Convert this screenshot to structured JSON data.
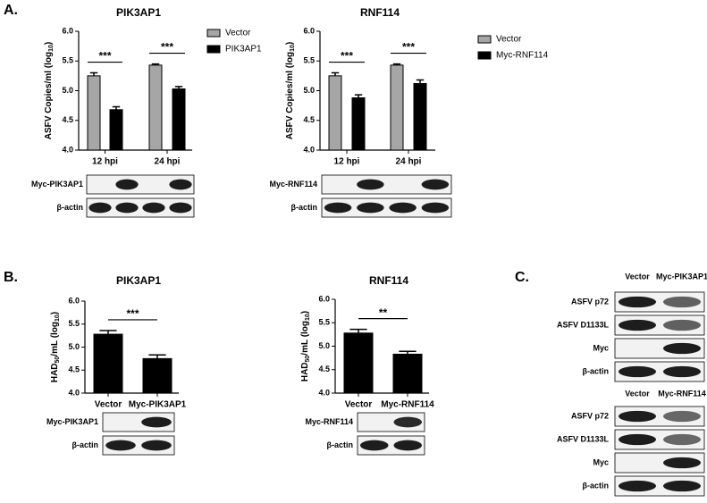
{
  "panel_labels": [
    "A.",
    "B.",
    "C."
  ],
  "chart_data": [
    {
      "type": "bar",
      "title": "PIK3AP1",
      "y_label": [
        "ASFV Copies/ml (log",
        "10",
        ")"
      ],
      "categories": [
        "12 hpi",
        "24 hpi"
      ],
      "series": [
        {
          "name": "Vector",
          "color": "#a6a6a6",
          "values": [
            5.25,
            5.43
          ],
          "errors": [
            0.05,
            0.02
          ]
        },
        {
          "name": "PIK3AP1",
          "color": "#000000",
          "values": [
            4.68,
            5.03
          ],
          "errors": [
            0.05,
            0.04
          ]
        }
      ],
      "annotations": [
        "***",
        "***"
      ],
      "ylim": [
        4.0,
        6.0
      ],
      "yticks": [
        {
          "value": 4,
          "label": "4.0"
        },
        {
          "value": 4.5,
          "label": "4.5"
        },
        {
          "value": 5,
          "label": "5.0"
        },
        {
          "value": 5.5,
          "label": "5.5"
        },
        {
          "value": 6,
          "label": "6.0"
        }
      ]
    },
    {
      "type": "bar",
      "title": "RNF114",
      "y_label": [
        "ASFV Copies/ml (log",
        "10",
        ")"
      ],
      "categories": [
        "12 hpi",
        "24 hpi"
      ],
      "series": [
        {
          "name": "Vector",
          "color": "#a6a6a6",
          "values": [
            5.25,
            5.43
          ],
          "errors": [
            0.05,
            0.02
          ]
        },
        {
          "name": "Myc-RNF114",
          "color": "#000000",
          "values": [
            4.88,
            5.12
          ],
          "errors": [
            0.05,
            0.06
          ]
        }
      ],
      "annotations": [
        "***",
        "***"
      ],
      "ylim": [
        4.0,
        6.0
      ],
      "yticks": [
        {
          "value": 4,
          "label": "4.0"
        },
        {
          "value": 4.5,
          "label": "4.5"
        },
        {
          "value": 5,
          "label": "5.0"
        },
        {
          "value": 5.5,
          "label": "5.5"
        },
        {
          "value": 6,
          "label": "6.0"
        }
      ]
    },
    {
      "type": "bar",
      "title": "PIK3AP1",
      "y_label": [
        "HAD",
        "50",
        "/mL (log",
        "10",
        ")"
      ],
      "categories": [
        "Vector",
        "Myc-PIK3AP1"
      ],
      "series": [
        {
          "color": "#000000",
          "values": [
            5.28,
            4.75
          ],
          "errors": [
            0.08,
            0.08
          ]
        }
      ],
      "annotations": [
        "***"
      ],
      "ylim": [
        4.0,
        6.0
      ],
      "yticks": [
        {
          "value": 4,
          "label": "4.0"
        },
        {
          "value": 4.5,
          "label": "4.5"
        },
        {
          "value": 5,
          "label": "5.0"
        },
        {
          "value": 5.5,
          "label": "5.5"
        },
        {
          "value": 6,
          "label": "6.0"
        }
      ]
    },
    {
      "type": "bar",
      "title": "RNF114",
      "y_label": [
        "HAD",
        "50",
        "/mL (log",
        "10",
        ")"
      ],
      "categories": [
        "Vector",
        "Myc-RNF114"
      ],
      "series": [
        {
          "color": "#000000",
          "values": [
            5.28,
            4.83
          ],
          "errors": [
            0.08,
            0.06
          ]
        }
      ],
      "annotations": [
        "**"
      ],
      "ylim": [
        4.0,
        6.0
      ],
      "yticks": [
        {
          "value": 4,
          "label": "4.0"
        },
        {
          "value": 4.5,
          "label": "4.5"
        },
        {
          "value": 5,
          "label": "5.0"
        },
        {
          "value": 5.5,
          "label": "5.5"
        },
        {
          "value": 6,
          "label": "6.0"
        }
      ]
    }
  ],
  "blots": [
    {
      "rows": [
        "Myc-PIK3AP1",
        "β-actin"
      ]
    },
    {
      "rows": [
        "Myc-RNF114",
        "β-actin"
      ]
    },
    {
      "rows": [
        "Myc-PIK3AP1",
        "β-actin"
      ]
    },
    {
      "rows": [
        "Myc-RNF114",
        "β-actin"
      ]
    },
    {
      "lanes": [
        "Vector",
        "Myc-PIK3AP1"
      ],
      "rows": [
        "ASFV p72",
        "ASFV D1133L",
        "Myc",
        "β-actin"
      ]
    },
    {
      "lanes": [
        "Vector",
        "Myc-RNF114"
      ],
      "rows": [
        "ASFV p72",
        "ASFV D1133L",
        "Myc",
        "β-actin"
      ]
    }
  ]
}
